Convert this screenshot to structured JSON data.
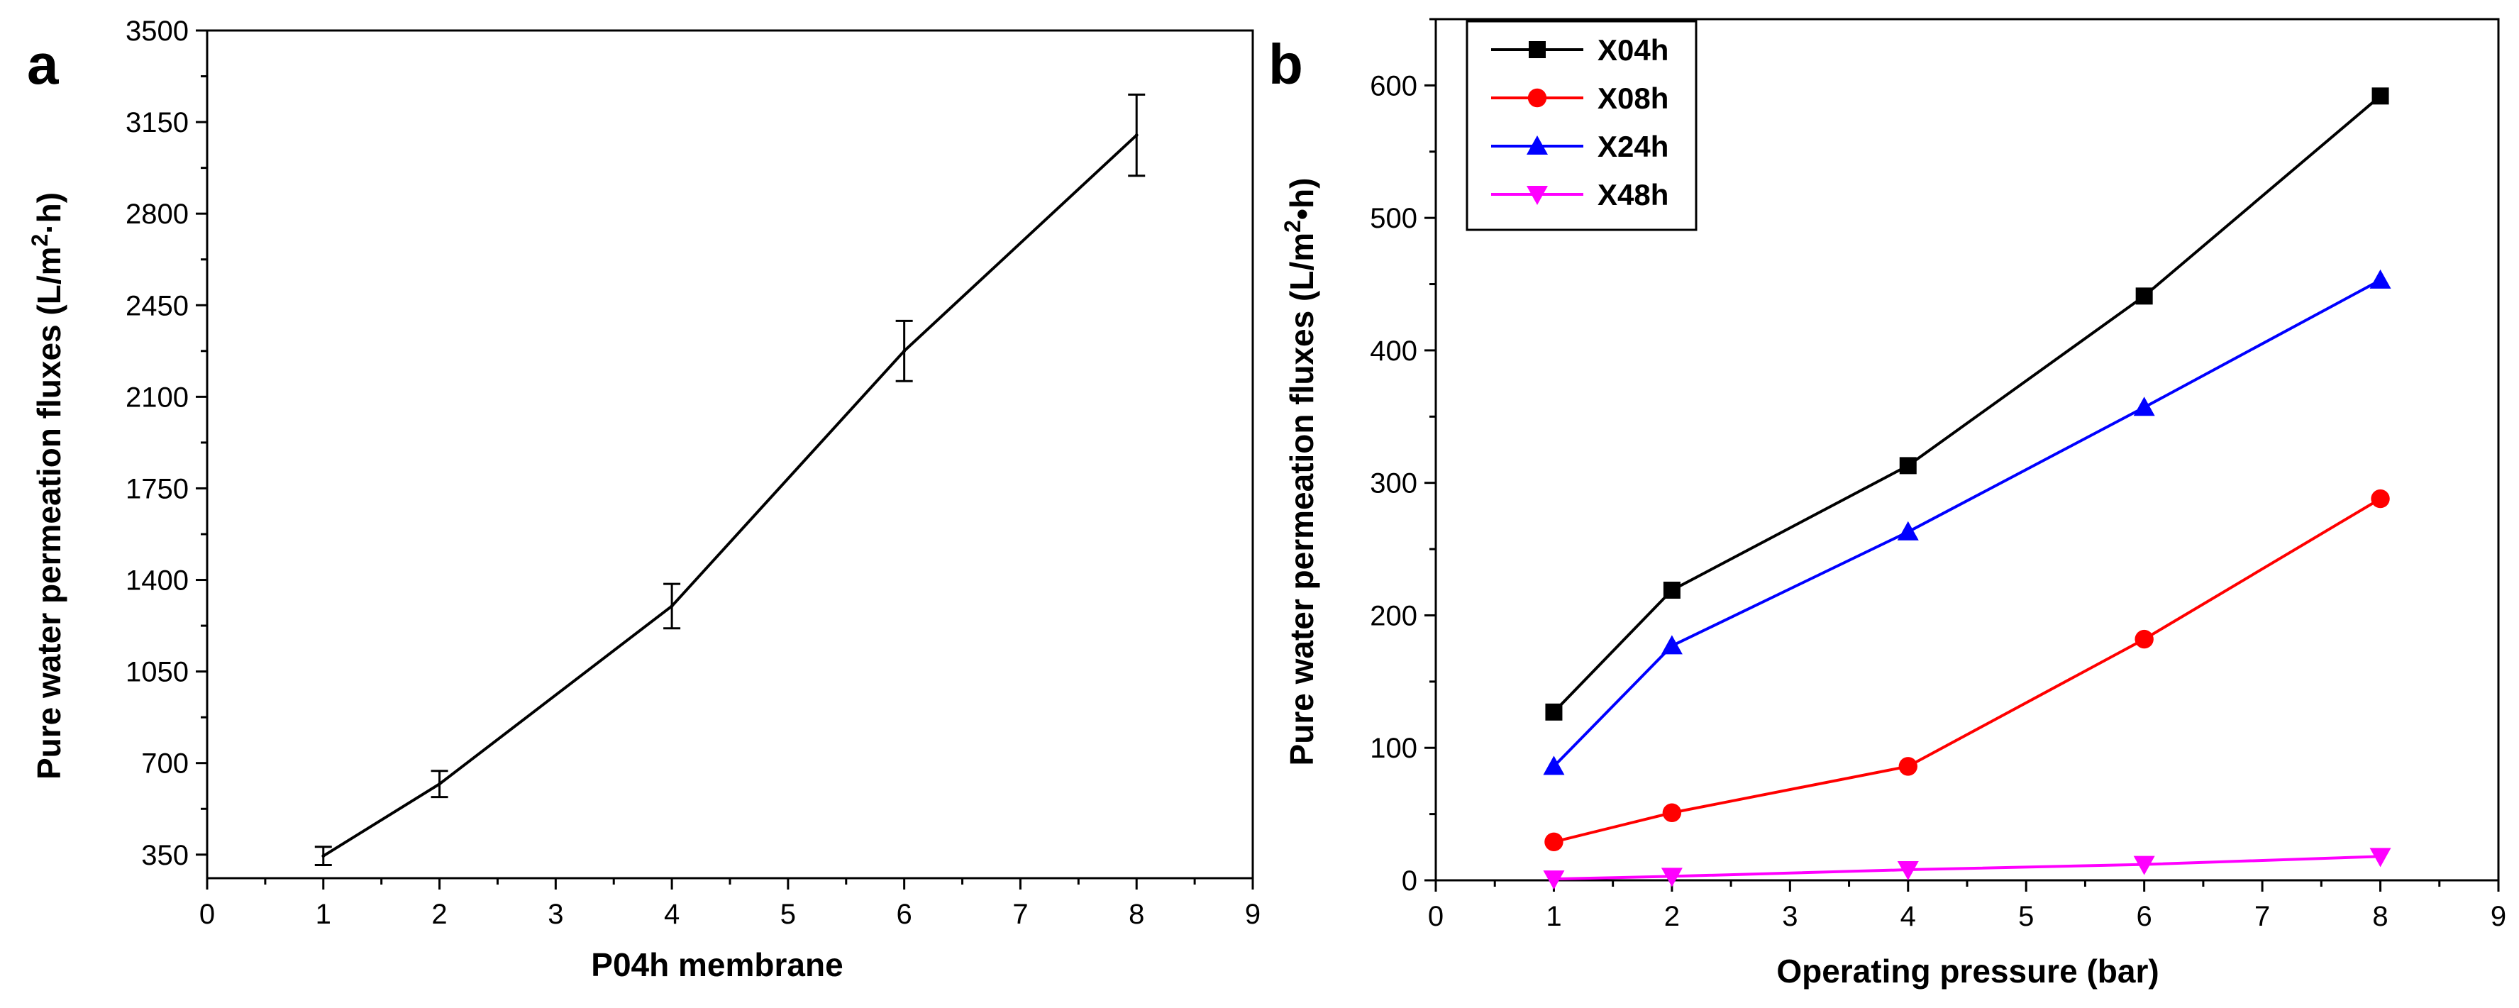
{
  "chart_data": [
    {
      "panel": "a",
      "type": "line",
      "xlabel": "P04h membrane",
      "ylabel": "Pure water permeation fluxes (L/m",
      "ylabel_sup": "2",
      "ylabel_end": "·h)",
      "xlim": [
        0,
        9
      ],
      "ylim": [
        260,
        3500
      ],
      "xticks": [
        "0",
        "1",
        "2",
        "3",
        "4",
        "5",
        "6",
        "7",
        "8",
        "9"
      ],
      "yticks": [
        "350",
        "700",
        "1050",
        "1400",
        "1750",
        "2100",
        "2450",
        "2800",
        "3150",
        "3500"
      ],
      "series": [
        {
          "name": "P04h",
          "color": "#000000",
          "x": [
            1,
            2,
            4,
            6,
            8
          ],
          "values": [
            345,
            620,
            1300,
            2275,
            3100
          ],
          "errors": [
            35,
            50,
            85,
            115,
            155
          ]
        }
      ]
    },
    {
      "panel": "b",
      "type": "line",
      "xlabel": "Operating pressure (bar)",
      "ylabel": "Pure water permeation fluxes (L/m",
      "ylabel_sup": "2",
      "ylabel_end": "•h)",
      "xlim": [
        0,
        9
      ],
      "ylim": [
        0,
        650
      ],
      "xticks": [
        "0",
        "1",
        "2",
        "3",
        "4",
        "5",
        "6",
        "7",
        "8",
        "9"
      ],
      "yticks": [
        "0",
        "100",
        "200",
        "300",
        "400",
        "500",
        "600"
      ],
      "legend": "top-left",
      "series": [
        {
          "name": "X04h",
          "color": "#000000",
          "marker": "square",
          "x": [
            1,
            2,
            4,
            6,
            8
          ],
          "values": [
            127,
            219,
            313,
            441,
            592
          ]
        },
        {
          "name": "X08h",
          "color": "#ff0000",
          "marker": "circle",
          "x": [
            1,
            2,
            4,
            6,
            8
          ],
          "values": [
            29,
            51,
            86,
            182,
            288
          ]
        },
        {
          "name": "X24h",
          "color": "#0000ff",
          "marker": "triangle-up",
          "x": [
            1,
            2,
            4,
            6,
            8
          ],
          "values": [
            86,
            177,
            263,
            357,
            453
          ]
        },
        {
          "name": "X48h",
          "color": "#ff00ff",
          "marker": "triangle-down",
          "x": [
            1,
            2,
            4,
            6,
            8
          ],
          "values": [
            1,
            3,
            8,
            12,
            18
          ]
        }
      ]
    }
  ]
}
